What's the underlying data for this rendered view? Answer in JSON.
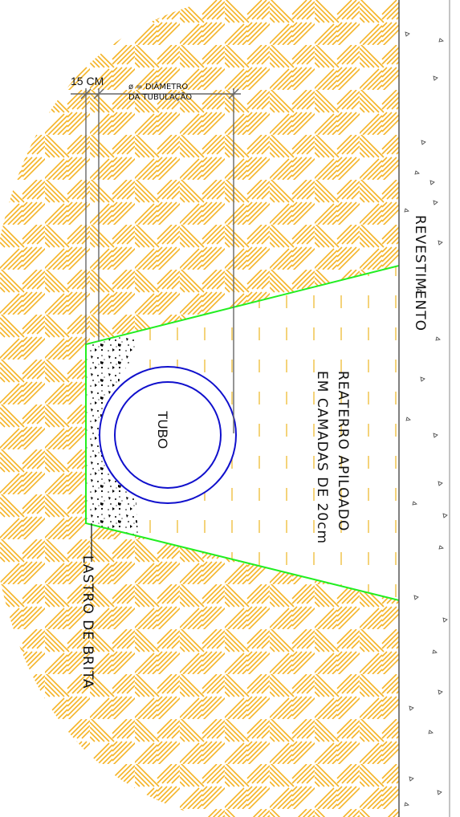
{
  "labels": {
    "width_dim": "15 CM",
    "diameter_line1": "ø = DIÂMETRO",
    "diameter_line2": "DA TUBULAÇÃO",
    "surface": "REVESTIMENTO",
    "backfill_line1": "REATERRO APILOADO",
    "backfill_line2": "EM CAMADAS DE 20cm",
    "pipe": "TUBO",
    "bedding": "LASTRO DE BRITA"
  },
  "colors": {
    "soil_hatch": "#f4b428",
    "backfill_dash": "#f0c040",
    "trench_outline": "#22ee22",
    "pipe": "#1010cc",
    "lines": "#555555",
    "gravel": "#000000"
  },
  "icons": {
    "soil": "diagonal-crosshatch-pattern",
    "pavement": "triangle-aggregate-pattern",
    "gravel": "stone-stipple-pattern"
  }
}
